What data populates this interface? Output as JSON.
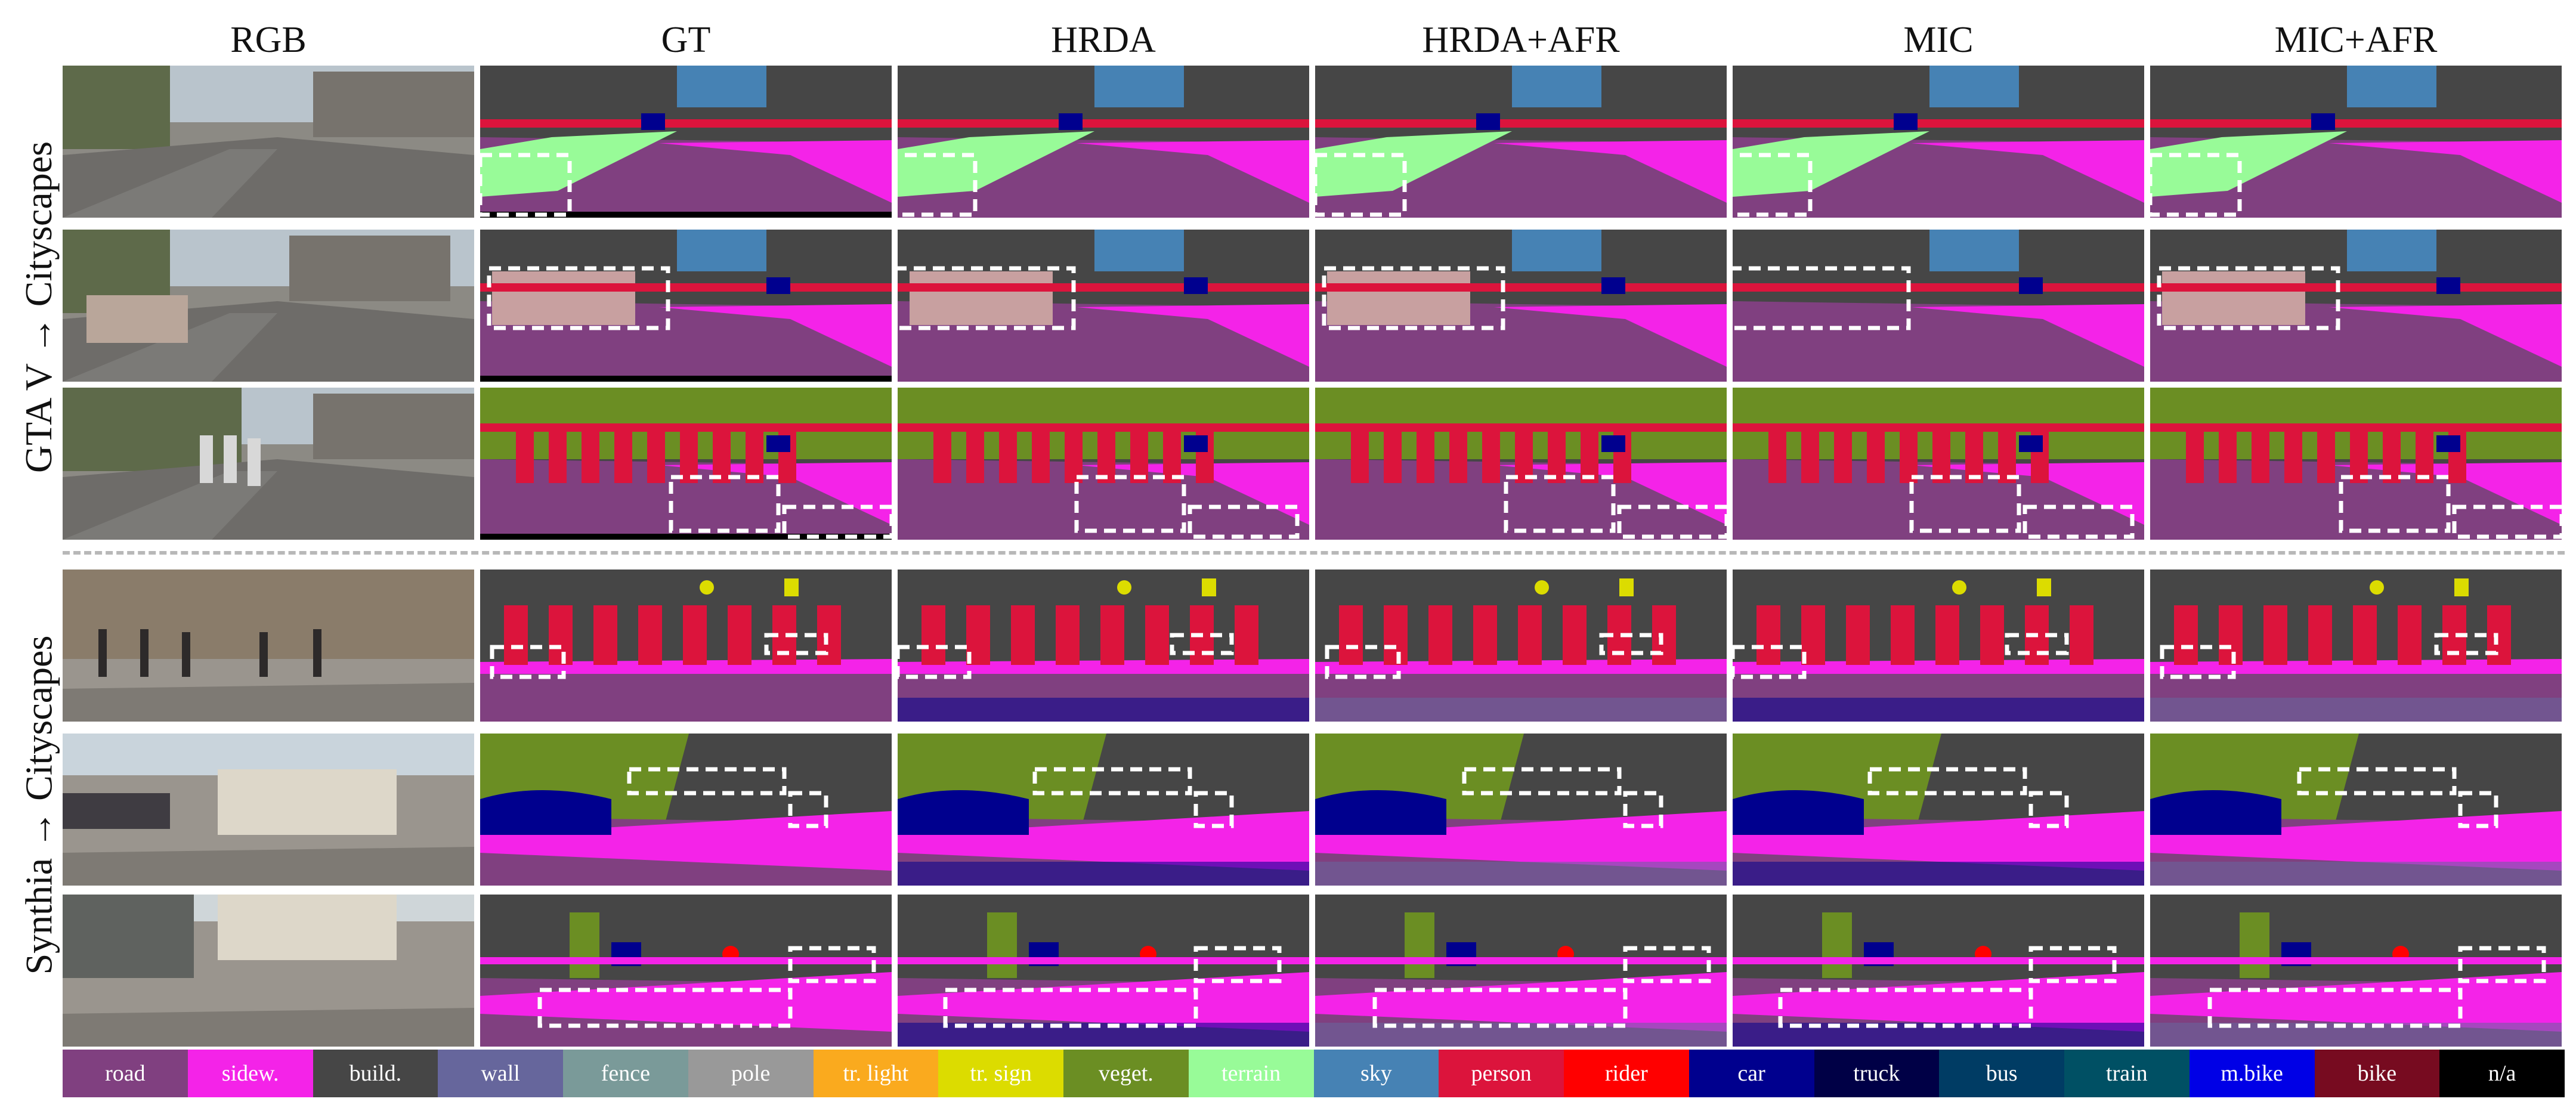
{
  "columns": [
    "RGB",
    "GT",
    "HRDA",
    "HRDA+AFR",
    "MIC",
    "MIC+AFR"
  ],
  "row_groups": [
    {
      "label": "GTA V → Cityscapes"
    },
    {
      "label": "Synthia → Cityscapes"
    }
  ],
  "legend": [
    {
      "label": "road",
      "color": "#804080"
    },
    {
      "label": "sidew.",
      "color": "#f423e8"
    },
    {
      "label": "build.",
      "color": "#464646"
    },
    {
      "label": "wall",
      "color": "#66669c"
    },
    {
      "label": "fence",
      "color": "#7a9a99"
    },
    {
      "label": "pole",
      "color": "#999999"
    },
    {
      "label": "tr. light",
      "color": "#faaa1e"
    },
    {
      "label": "tr. sign",
      "color": "#dcdc00"
    },
    {
      "label": "veget.",
      "color": "#6b8e23"
    },
    {
      "label": "terrain",
      "color": "#98fb98"
    },
    {
      "label": "sky",
      "color": "#4682b4"
    },
    {
      "label": "person",
      "color": "#dc143c"
    },
    {
      "label": "rider",
      "color": "#ff0000"
    },
    {
      "label": "car",
      "color": "#00008e"
    },
    {
      "label": "truck",
      "color": "#000046"
    },
    {
      "label": "bus",
      "color": "#003c64"
    },
    {
      "label": "train",
      "color": "#005064"
    },
    {
      "label": "m.bike",
      "color": "#0000e6"
    },
    {
      "label": "bike",
      "color": "#770b20"
    },
    {
      "label": "n/a",
      "color": "#000000"
    }
  ]
}
